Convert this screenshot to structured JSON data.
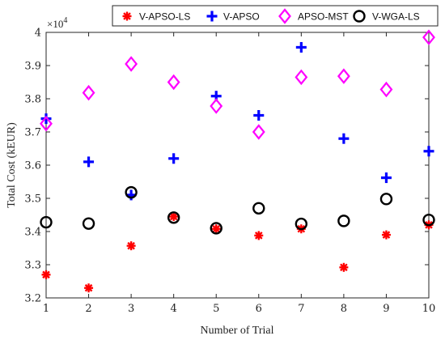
{
  "chart_data": {
    "type": "scatter",
    "title": "",
    "xlabel": "Number of Trial",
    "ylabel": "Total Cost (kEUR)",
    "y_exponent_base": "×10",
    "y_exponent_power": "4",
    "x_ticks": [
      "1",
      "2",
      "3",
      "4",
      "5",
      "6",
      "7",
      "8",
      "9",
      "10"
    ],
    "y_ticks": [
      "3.2",
      "3.3",
      "3.4",
      "3.5",
      "3.6",
      "3.7",
      "3.8",
      "3.9",
      "4"
    ],
    "xlim": [
      1,
      10
    ],
    "ylim": [
      3.2,
      4.0
    ],
    "y_scale_factor": 10000,
    "grid": false,
    "legend_position": "top",
    "x": [
      1,
      2,
      3,
      4,
      5,
      6,
      7,
      8,
      9,
      10
    ],
    "series": [
      {
        "name": "V-APSO-LS",
        "marker": "asterisk",
        "color": "#ff0000",
        "values": [
          3.27,
          3.23,
          3.357,
          3.445,
          3.408,
          3.388,
          3.408,
          3.292,
          3.39,
          3.42
        ]
      },
      {
        "name": "V-APSO",
        "marker": "plus",
        "color": "#0000ff",
        "values": [
          3.74,
          3.61,
          3.51,
          3.62,
          3.808,
          3.75,
          3.955,
          3.68,
          3.562,
          3.642
        ]
      },
      {
        "name": "APSO-MST",
        "marker": "diamond",
        "color": "#ff00ff",
        "values": [
          3.725,
          3.818,
          3.905,
          3.85,
          3.778,
          3.7,
          3.865,
          3.868,
          3.828,
          3.985
        ]
      },
      {
        "name": "V-WGA-LS",
        "marker": "circle",
        "color": "#000000",
        "values": [
          3.428,
          3.424,
          3.518,
          3.442,
          3.41,
          3.47,
          3.423,
          3.432,
          3.498,
          3.435
        ]
      }
    ]
  }
}
